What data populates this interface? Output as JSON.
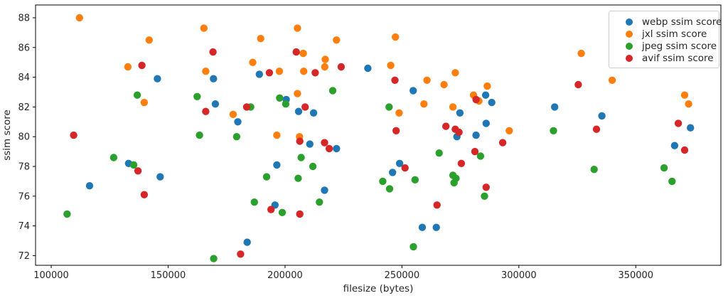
{
  "chart_data": {
    "type": "scatter",
    "title": "",
    "xlabel": "filesize (bytes)",
    "ylabel": "ssim score",
    "xlim": [
      93300,
      386400
    ],
    "ylim": [
      71.35,
      88.86
    ],
    "x_ticks": [
      100000,
      150000,
      200000,
      250000,
      300000,
      350000
    ],
    "y_ticks": [
      72,
      74,
      76,
      78,
      80,
      82,
      84,
      86,
      88
    ],
    "grid": false,
    "legend_position": "upper right",
    "marker": "circle",
    "series": [
      {
        "name": "webp ssim score",
        "color": "#1f77b4",
        "points": [
          [
            145400,
            83.9
          ],
          [
            133100,
            78.2
          ],
          [
            146600,
            77.3
          ],
          [
            116400,
            76.7
          ],
          [
            169400,
            83.9
          ],
          [
            189000,
            84.2
          ],
          [
            170200,
            82.2
          ],
          [
            200500,
            82.5
          ],
          [
            205800,
            81.7
          ],
          [
            212200,
            81.6
          ],
          [
            179800,
            81.0
          ],
          [
            196500,
            78.1
          ],
          [
            195700,
            75.4
          ],
          [
            183800,
            72.9
          ],
          [
            235400,
            84.6
          ],
          [
            254800,
            83.1
          ],
          [
            246000,
            77.6
          ],
          [
            249000,
            78.2
          ],
          [
            216900,
            76.4
          ],
          [
            258700,
            73.9
          ],
          [
            264700,
            73.9
          ],
          [
            274800,
            81.6
          ],
          [
            273500,
            80.0
          ],
          [
            286000,
            80.9
          ],
          [
            281700,
            80.1
          ],
          [
            288400,
            82.3
          ],
          [
            285800,
            82.8
          ],
          [
            315300,
            82.0
          ],
          [
            335500,
            81.4
          ],
          [
            366600,
            79.4
          ],
          [
            373400,
            80.6
          ],
          [
            210600,
            79.5
          ],
          [
            222000,
            79.2
          ]
        ]
      },
      {
        "name": "jxl ssim score",
        "color": "#ff7f0e",
        "points": [
          [
            112100,
            88.0
          ],
          [
            141900,
            86.5
          ],
          [
            132800,
            84.7
          ],
          [
            139800,
            82.3
          ],
          [
            165300,
            87.3
          ],
          [
            189600,
            86.6
          ],
          [
            205300,
            87.3
          ],
          [
            207800,
            85.6
          ],
          [
            186200,
            85.0
          ],
          [
            166100,
            84.4
          ],
          [
            197600,
            84.4
          ],
          [
            208000,
            84.4
          ],
          [
            177800,
            81.5
          ],
          [
            205300,
            82.9
          ],
          [
            196500,
            80.1
          ],
          [
            206200,
            80.0
          ],
          [
            222000,
            86.5
          ],
          [
            247200,
            86.7
          ],
          [
            217200,
            85.2
          ],
          [
            217000,
            84.7
          ],
          [
            245200,
            84.8
          ],
          [
            260700,
            83.8
          ],
          [
            268000,
            83.5
          ],
          [
            272800,
            84.3
          ],
          [
            259400,
            82.2
          ],
          [
            271800,
            82.0
          ],
          [
            248800,
            81.6
          ],
          [
            286500,
            83.4
          ],
          [
            280600,
            82.8
          ],
          [
            282900,
            82.4
          ],
          [
            326700,
            85.6
          ],
          [
            339900,
            83.8
          ],
          [
            295900,
            80.4
          ],
          [
            370900,
            82.8
          ],
          [
            372600,
            82.2
          ]
        ]
      },
      {
        "name": "jpeg ssim score",
        "color": "#2ca02c",
        "points": [
          [
            136800,
            82.8
          ],
          [
            126700,
            78.6
          ],
          [
            135300,
            78.1
          ],
          [
            106800,
            74.8
          ],
          [
            162400,
            82.7
          ],
          [
            185300,
            82.0
          ],
          [
            197700,
            82.6
          ],
          [
            200300,
            82.2
          ],
          [
            163400,
            80.1
          ],
          [
            179300,
            80.0
          ],
          [
            206900,
            78.6
          ],
          [
            211900,
            78.0
          ],
          [
            192100,
            77.3
          ],
          [
            205600,
            77.2
          ],
          [
            186900,
            75.6
          ],
          [
            198800,
            74.9
          ],
          [
            169500,
            71.8
          ],
          [
            254900,
            72.6
          ],
          [
            220400,
            83.1
          ],
          [
            244500,
            82.0
          ],
          [
            241800,
            77.0
          ],
          [
            244700,
            76.5
          ],
          [
            255600,
            77.1
          ],
          [
            265900,
            78.9
          ],
          [
            214700,
            75.6
          ],
          [
            271800,
            77.4
          ],
          [
            273100,
            77.2
          ],
          [
            272300,
            76.9
          ],
          [
            283600,
            78.7
          ],
          [
            285300,
            76.0
          ],
          [
            314800,
            80.4
          ],
          [
            332200,
            77.8
          ],
          [
            362100,
            77.9
          ],
          [
            365500,
            77.0
          ]
        ]
      },
      {
        "name": "avif ssim score",
        "color": "#d62728",
        "points": [
          [
            109600,
            80.1
          ],
          [
            138800,
            84.8
          ],
          [
            137100,
            77.7
          ],
          [
            139800,
            76.1
          ],
          [
            169200,
            85.7
          ],
          [
            204800,
            85.7
          ],
          [
            166100,
            81.7
          ],
          [
            183600,
            82.0
          ],
          [
            193300,
            84.3
          ],
          [
            212900,
            84.3
          ],
          [
            208600,
            82.0
          ],
          [
            206300,
            79.7
          ],
          [
            194000,
            75.1
          ],
          [
            206300,
            74.8
          ],
          [
            181000,
            72.1
          ],
          [
            224000,
            84.7
          ],
          [
            247000,
            83.8
          ],
          [
            247500,
            80.4
          ],
          [
            268800,
            80.7
          ],
          [
            272800,
            80.5
          ],
          [
            274400,
            80.3
          ],
          [
            216900,
            79.6
          ],
          [
            218900,
            79.2
          ],
          [
            251300,
            77.9
          ],
          [
            265000,
            75.4
          ],
          [
            275400,
            78.2
          ],
          [
            281200,
            79.0
          ],
          [
            281700,
            82.5
          ],
          [
            286000,
            76.6
          ],
          [
            293100,
            79.6
          ],
          [
            325400,
            83.5
          ],
          [
            333200,
            80.5
          ],
          [
            368200,
            80.9
          ],
          [
            370900,
            79.1
          ]
        ]
      }
    ]
  }
}
